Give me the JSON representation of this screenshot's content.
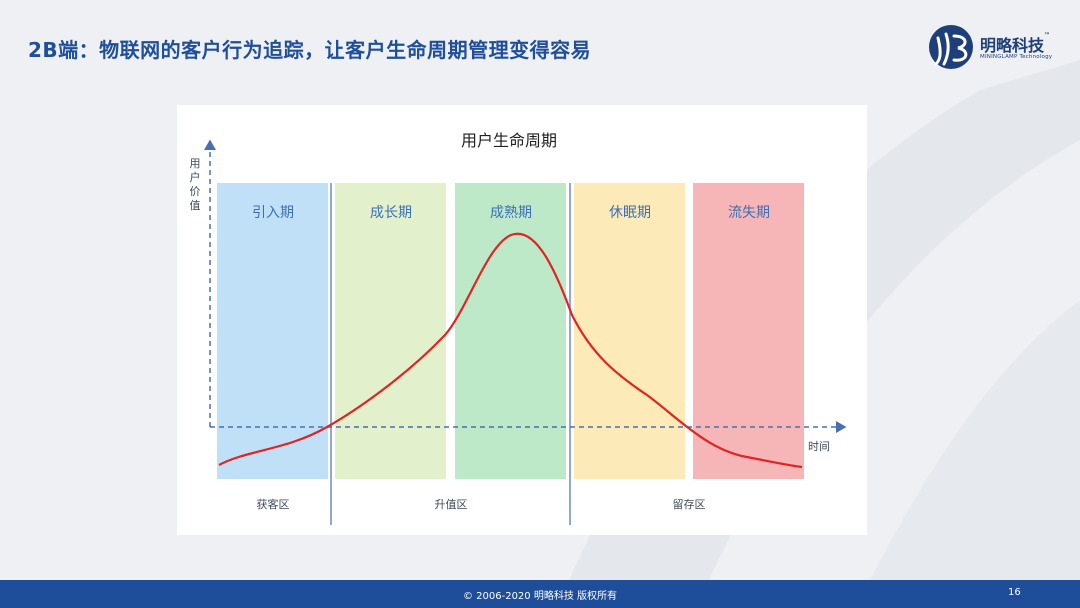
{
  "slide": {
    "title": "2B端：物联网的客户行为追踪，让客户生命周期管理变得容易"
  },
  "logo": {
    "name": "明略科技",
    "tm": "™",
    "subtitle": "MININGLAMP Technology"
  },
  "diagram": {
    "title": "用户生命周期",
    "y_label": "用户价值",
    "x_label": "时间",
    "stages": [
      {
        "label": "引入期",
        "color": "#bfe0f6"
      },
      {
        "label": "成长期",
        "color": "#e2f1cc"
      },
      {
        "label": "成熟期",
        "color": "#bde9c9"
      },
      {
        "label": "休眠期",
        "color": "#fcebb8"
      },
      {
        "label": "流失期",
        "color": "#f6b6b7"
      }
    ],
    "zones": [
      "获客区",
      "升值区",
      "留存区"
    ],
    "stage_text_color": "#3d6fb6",
    "curve_color": "#e02424",
    "axis_color": "#4a6fb0"
  },
  "footer": {
    "copyright": "© 2006-2020  明略科技 版权所有",
    "page_number": "16"
  }
}
